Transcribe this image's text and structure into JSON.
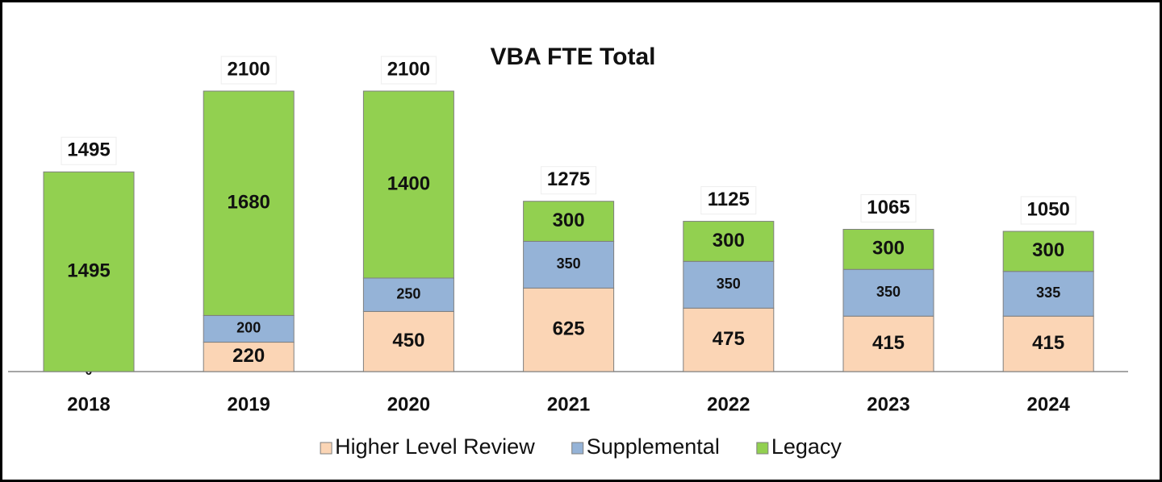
{
  "chart_data": {
    "type": "stacked_bar",
    "title": "VBA FTE Total",
    "categories": [
      "2018",
      "2019",
      "2020",
      "2021",
      "2022",
      "2023",
      "2024"
    ],
    "series": [
      {
        "name": "Higher Level Review",
        "color": "#fbd5b5",
        "values": [
          0,
          220,
          450,
          625,
          475,
          415,
          415
        ]
      },
      {
        "name": "Supplemental",
        "color": "#95b3d7",
        "values": [
          null,
          200,
          250,
          350,
          350,
          350,
          335
        ]
      },
      {
        "name": "Legacy",
        "color": "#92d050",
        "values": [
          1495,
          1680,
          1400,
          300,
          300,
          300,
          300
        ]
      }
    ],
    "totals": [
      1495,
      2100,
      2100,
      1275,
      1125,
      1065,
      1050
    ],
    "legend": "bottom"
  }
}
